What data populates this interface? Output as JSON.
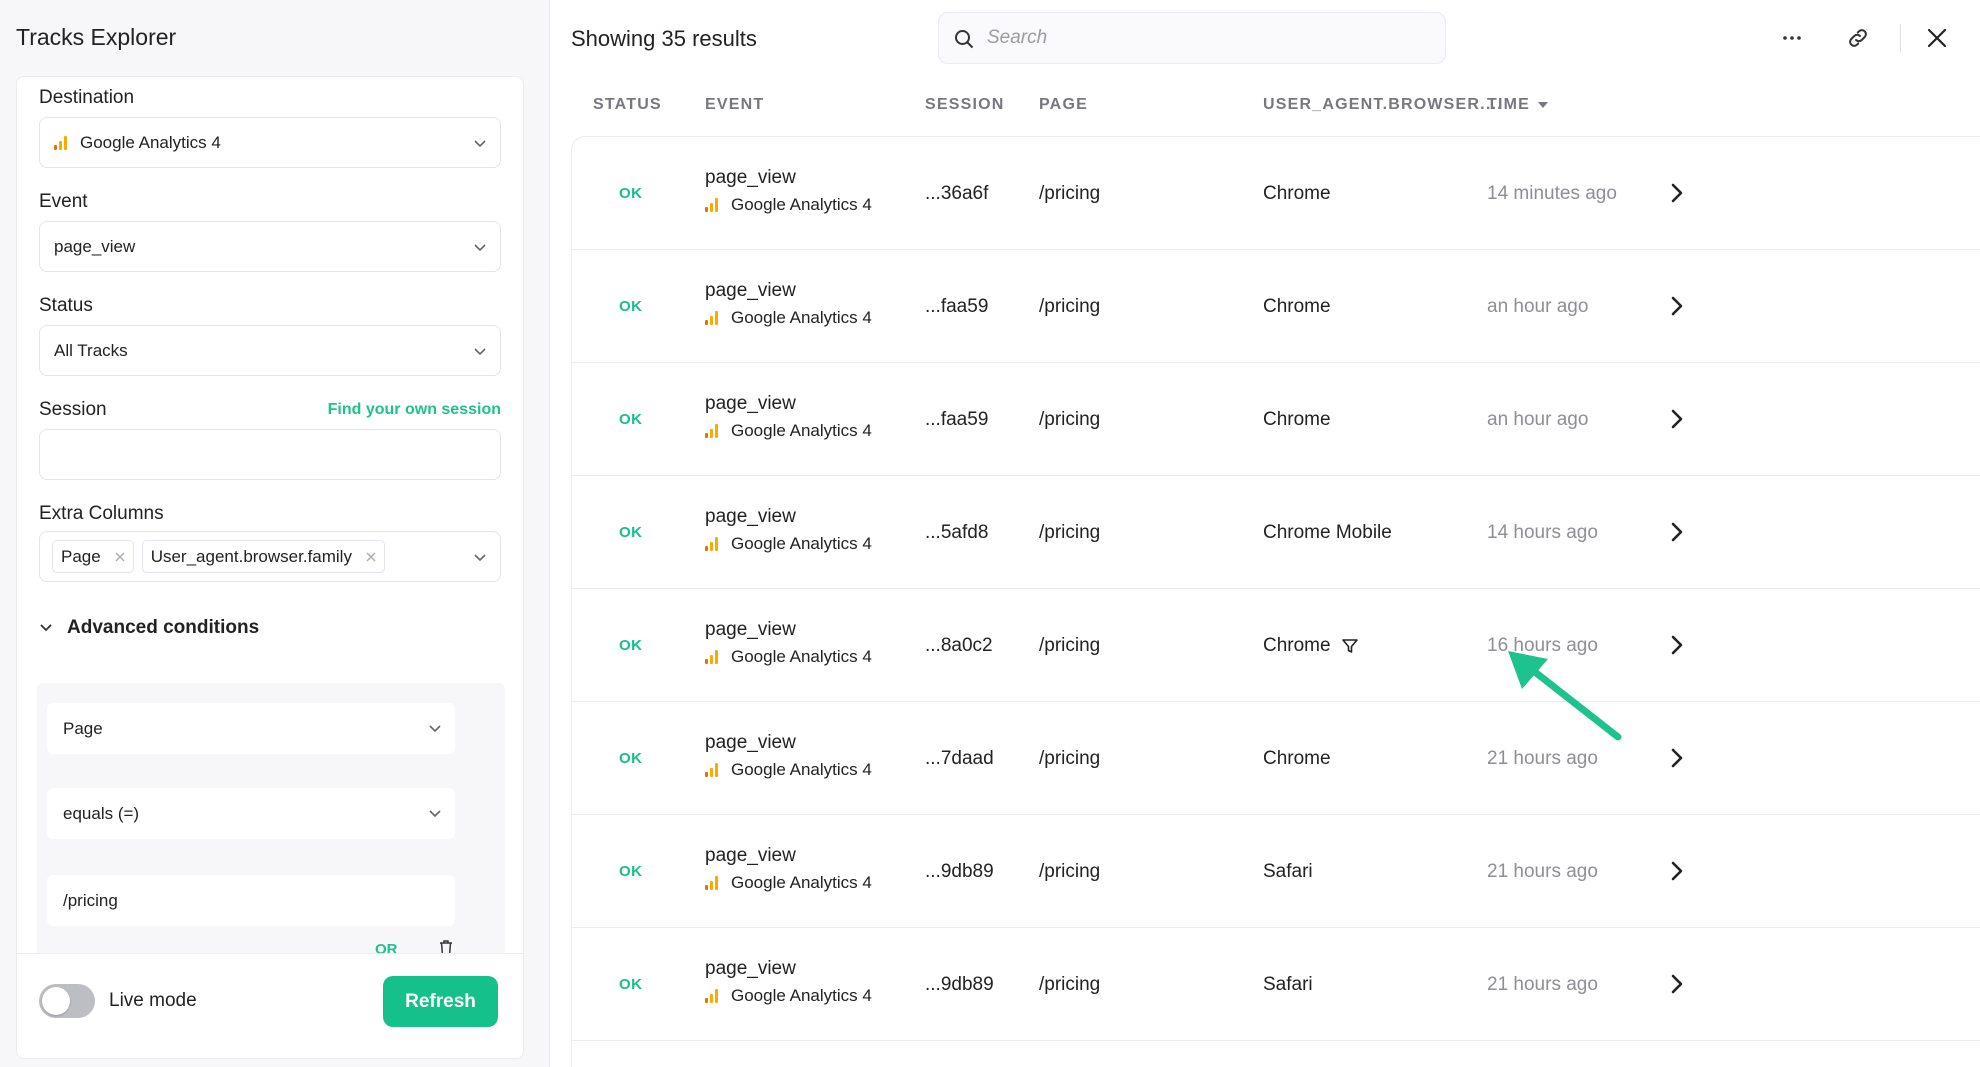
{
  "app": {
    "title": "Tracks Explorer"
  },
  "sidebar": {
    "destination": {
      "label": "Destination",
      "value": "Google Analytics 4"
    },
    "event": {
      "label": "Event",
      "value": "page_view"
    },
    "status": {
      "label": "Status",
      "value": "All Tracks"
    },
    "session": {
      "label": "Session",
      "link": "Find your own session",
      "value": ""
    },
    "extra_columns": {
      "label": "Extra Columns",
      "tags": [
        "Page",
        "User_agent.browser.family"
      ]
    },
    "advanced": {
      "label": "Advanced conditions",
      "field": "Page",
      "operator": "equals (=)",
      "value": "/pricing",
      "or_label": "OR"
    },
    "footer": {
      "live_label": "Live mode",
      "live_on": false,
      "refresh_label": "Refresh"
    }
  },
  "main": {
    "results_title": "Showing 35 results",
    "search_placeholder": "Search",
    "columns": [
      "STATUS",
      "EVENT",
      "SESSION",
      "PAGE",
      "USER_AGENT.BROWSER....",
      "TIME"
    ],
    "rows": [
      {
        "status": "OK",
        "event": "page_view",
        "destination": "Google Analytics 4",
        "session": "...36a6f",
        "page": "/pricing",
        "browser": "Chrome",
        "time": "14 minutes ago"
      },
      {
        "status": "OK",
        "event": "page_view",
        "destination": "Google Analytics 4",
        "session": "...faa59",
        "page": "/pricing",
        "browser": "Chrome",
        "time": "an hour ago"
      },
      {
        "status": "OK",
        "event": "page_view",
        "destination": "Google Analytics 4",
        "session": "...faa59",
        "page": "/pricing",
        "browser": "Chrome",
        "time": "an hour ago"
      },
      {
        "status": "OK",
        "event": "page_view",
        "destination": "Google Analytics 4",
        "session": "...5afd8",
        "page": "/pricing",
        "browser": "Chrome Mobile",
        "time": "14 hours ago"
      },
      {
        "status": "OK",
        "event": "page_view",
        "destination": "Google Analytics 4",
        "session": "...8a0c2",
        "page": "/pricing",
        "browser": "Chrome",
        "time": "16 hours ago"
      },
      {
        "status": "OK",
        "event": "page_view",
        "destination": "Google Analytics 4",
        "session": "...7daad",
        "page": "/pricing",
        "browser": "Chrome",
        "time": "21 hours ago"
      },
      {
        "status": "OK",
        "event": "page_view",
        "destination": "Google Analytics 4",
        "session": "...9db89",
        "page": "/pricing",
        "browser": "Safari",
        "time": "21 hours ago"
      },
      {
        "status": "OK",
        "event": "page_view",
        "destination": "Google Analytics 4",
        "session": "...9db89",
        "page": "/pricing",
        "browser": "Safari",
        "time": "21 hours ago"
      }
    ]
  },
  "colors": {
    "accent": "#16c08b",
    "annotation_arrow": "#1ec28e",
    "muted": "#8e8e96"
  },
  "icons": [
    "search-icon",
    "more-icon",
    "link-icon",
    "close-icon",
    "chevron-down-icon",
    "chevron-right-icon",
    "filter-icon",
    "trash-icon",
    "google-analytics-icon"
  ]
}
